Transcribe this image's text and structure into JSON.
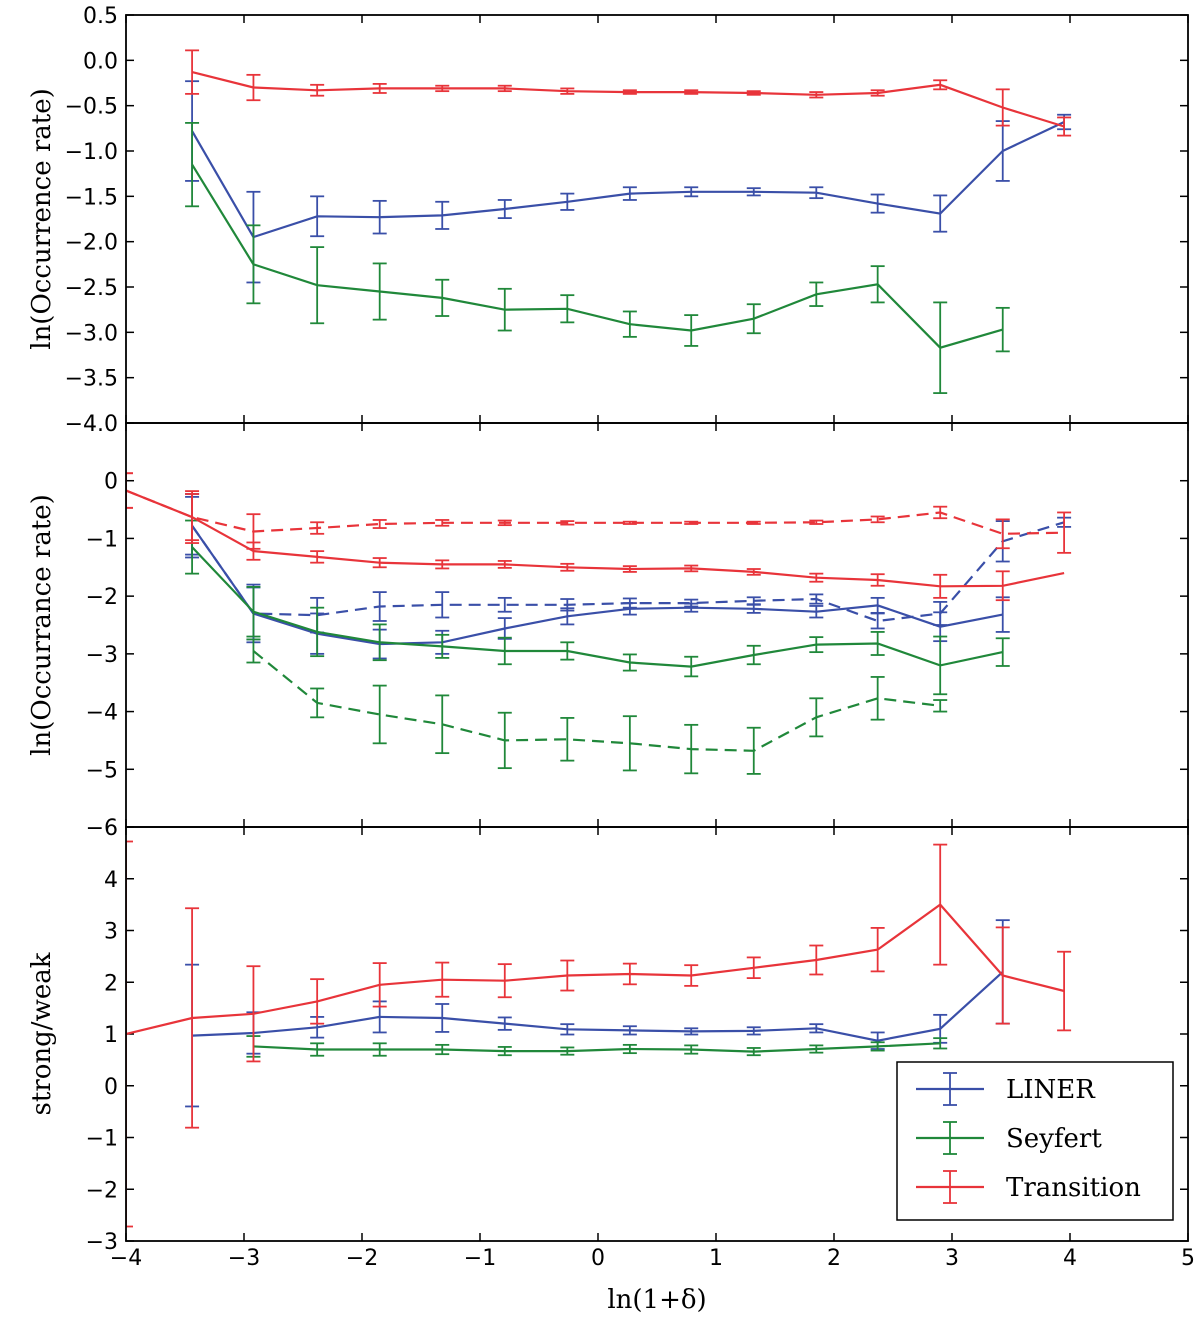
{
  "chart_data": [
    {
      "type": "line",
      "panel": "top",
      "ylabel": "ln(Occurrence rate)",
      "xlim": [
        -4,
        5
      ],
      "ylim": [
        -4.0,
        0.5
      ],
      "yticks": [
        0.5,
        0.0,
        -0.5,
        -1.0,
        -1.5,
        -2.0,
        -2.5,
        -3.0,
        -3.5,
        -4.0
      ],
      "ytick_labels": [
        "0.5",
        "0.0",
        "−0.5",
        "−1.0",
        "−1.5",
        "−2.0",
        "−2.5",
        "−3.0",
        "−3.5",
        "−4.0"
      ],
      "series": [
        {
          "name": "LINER",
          "color": "#3a4fa8",
          "style": "solid",
          "x": [
            -3.44,
            -2.92,
            -2.38,
            -1.85,
            -1.32,
            -0.79,
            -0.26,
            0.27,
            0.79,
            1.32,
            1.85,
            2.37,
            2.9,
            3.43,
            3.95
          ],
          "y": [
            -0.78,
            -1.95,
            -1.72,
            -1.73,
            -1.71,
            -1.64,
            -1.56,
            -1.47,
            -1.45,
            -1.45,
            -1.46,
            -1.58,
            -1.69,
            -1.0,
            -0.68
          ],
          "err": [
            0.55,
            0.5,
            0.22,
            0.18,
            0.15,
            0.1,
            0.09,
            0.07,
            0.05,
            0.04,
            0.06,
            0.1,
            0.2,
            0.33,
            0.08
          ]
        },
        {
          "name": "Seyfert",
          "color": "#20883a",
          "style": "solid",
          "x": [
            -3.44,
            -2.92,
            -2.38,
            -1.85,
            -1.32,
            -0.79,
            -0.26,
            0.27,
            0.79,
            1.32,
            1.85,
            2.37,
            2.9,
            3.43
          ],
          "y": [
            -1.15,
            -2.25,
            -2.48,
            -2.55,
            -2.62,
            -2.75,
            -2.74,
            -2.91,
            -2.98,
            -2.85,
            -2.58,
            -2.47,
            -3.17,
            -2.97
          ],
          "err": [
            0.46,
            0.43,
            0.42,
            0.31,
            0.2,
            0.23,
            0.15,
            0.14,
            0.17,
            0.16,
            0.13,
            0.2,
            0.5,
            0.24
          ]
        },
        {
          "name": "Transition",
          "color": "#e8343a",
          "style": "solid",
          "x": [
            -3.44,
            -2.92,
            -2.38,
            -1.85,
            -1.32,
            -0.79,
            -0.26,
            0.27,
            0.79,
            1.32,
            1.85,
            2.37,
            2.9,
            3.43,
            3.95
          ],
          "y": [
            -0.13,
            -0.3,
            -0.33,
            -0.31,
            -0.31,
            -0.31,
            -0.34,
            -0.35,
            -0.35,
            -0.36,
            -0.38,
            -0.36,
            -0.27,
            -0.52,
            -0.73
          ],
          "err": [
            0.24,
            0.14,
            0.06,
            0.05,
            0.03,
            0.03,
            0.03,
            0.02,
            0.02,
            0.02,
            0.03,
            0.03,
            0.05,
            0.2,
            0.1
          ]
        }
      ]
    },
    {
      "type": "line",
      "panel": "middle",
      "ylabel": "ln(Occurrance rate)",
      "xlim": [
        -4,
        5
      ],
      "ylim": [
        -6,
        1
      ],
      "yticks": [
        0,
        -1,
        -2,
        -3,
        -4,
        -5,
        -6
      ],
      "ytick_labels": [
        "0",
        "−1",
        "−2",
        "−3",
        "−4",
        "−5",
        "−6"
      ],
      "series": [
        {
          "name": "LINER",
          "color": "#3a4fa8",
          "style": "solid",
          "x": [
            -3.44,
            -2.92,
            -2.38,
            -1.85,
            -1.32,
            -0.79,
            -0.26,
            0.27,
            0.79,
            1.32,
            1.85,
            2.37,
            2.9,
            3.43
          ],
          "y": [
            -0.78,
            -2.3,
            -2.65,
            -2.83,
            -2.8,
            -2.56,
            -2.35,
            -2.22,
            -2.2,
            -2.22,
            -2.27,
            -2.16,
            -2.53,
            -2.32
          ],
          "err": [
            0.5,
            0.45,
            0.35,
            0.25,
            0.2,
            0.18,
            0.14,
            0.1,
            0.07,
            0.07,
            0.1,
            0.13,
            0.25,
            0.3
          ]
        },
        {
          "name": "LINER",
          "color": "#3a4fa8",
          "style": "dashed",
          "x": [
            -3.44,
            -2.92,
            -2.38,
            -1.85,
            -1.32,
            -0.79,
            -0.26,
            0.27,
            0.79,
            1.32,
            1.85,
            2.37,
            2.9,
            3.43,
            3.95
          ],
          "y": [
            -0.78,
            -2.3,
            -2.33,
            -2.18,
            -2.15,
            -2.15,
            -2.15,
            -2.12,
            -2.12,
            -2.08,
            -2.05,
            -2.43,
            -2.3,
            -1.05,
            -0.72
          ],
          "err": [
            0.55,
            0.5,
            0.3,
            0.25,
            0.22,
            0.12,
            0.1,
            0.08,
            0.06,
            0.06,
            0.08,
            0.13,
            0.2,
            0.35,
            0.08
          ]
        },
        {
          "name": "Seyfert",
          "color": "#20883a",
          "style": "solid",
          "x": [
            -3.44,
            -2.92,
            -2.38,
            -1.85,
            -1.32,
            -0.79,
            -0.26,
            0.27,
            0.79,
            1.32,
            1.85,
            2.37,
            2.9,
            3.43
          ],
          "y": [
            -1.15,
            -2.27,
            -2.62,
            -2.8,
            -2.87,
            -2.95,
            -2.95,
            -3.15,
            -3.22,
            -3.02,
            -2.84,
            -2.82,
            -3.2,
            -2.97
          ],
          "err": [
            0.46,
            0.43,
            0.42,
            0.31,
            0.2,
            0.23,
            0.15,
            0.14,
            0.17,
            0.16,
            0.13,
            0.2,
            0.5,
            0.24
          ]
        },
        {
          "name": "Seyfert",
          "color": "#20883a",
          "style": "dashed",
          "x": [
            -2.92,
            -2.38,
            -1.85,
            -1.32,
            -0.79,
            -0.26,
            0.27,
            0.79,
            1.32,
            1.85,
            2.37,
            2.9
          ],
          "y": [
            -2.95,
            -3.85,
            -4.05,
            -4.22,
            -4.5,
            -4.48,
            -4.55,
            -4.65,
            -4.68,
            -4.1,
            -3.77,
            -3.9
          ],
          "err": [
            0.2,
            0.25,
            0.5,
            0.5,
            0.48,
            0.37,
            0.47,
            0.42,
            0.4,
            0.33,
            0.37,
            0.1
          ]
        },
        {
          "name": "Transition",
          "color": "#e8343a",
          "style": "solid",
          "x": [
            -4.0,
            -3.44,
            -2.92,
            -2.38,
            -1.85,
            -1.32,
            -0.79,
            -0.26,
            0.27,
            0.79,
            1.32,
            1.85,
            2.37,
            2.9,
            3.43,
            3.95
          ],
          "y": [
            -0.17,
            -0.63,
            -1.22,
            -1.32,
            -1.42,
            -1.45,
            -1.45,
            -1.5,
            -1.53,
            -1.52,
            -1.58,
            -1.68,
            -1.72,
            -1.83,
            -1.82,
            -1.6
          ],
          "err": [
            0.3,
            0.4,
            0.15,
            0.1,
            0.08,
            0.07,
            0.06,
            0.06,
            0.05,
            0.05,
            0.05,
            0.07,
            0.1,
            0.2,
            0.25,
            0.0
          ]
        },
        {
          "name": "Transition",
          "color": "#e8343a",
          "style": "dashed",
          "x": [
            -4.0,
            -3.44,
            -2.92,
            -2.38,
            -1.85,
            -1.32,
            -0.79,
            -0.26,
            0.27,
            0.79,
            1.32,
            1.85,
            2.37,
            2.9,
            3.43,
            3.95
          ],
          "y": [
            -0.17,
            -0.63,
            -0.88,
            -0.82,
            -0.75,
            -0.73,
            -0.73,
            -0.73,
            -0.73,
            -0.73,
            -0.73,
            -0.72,
            -0.67,
            -0.55,
            -0.92,
            -0.9
          ],
          "err": [
            0.3,
            0.45,
            0.3,
            0.1,
            0.07,
            0.05,
            0.04,
            0.03,
            0.02,
            0.02,
            0.02,
            0.03,
            0.05,
            0.1,
            0.25,
            0.35
          ]
        }
      ]
    },
    {
      "type": "line",
      "panel": "bottom",
      "ylabel": "strong/weak",
      "xlabel": "ln(1+δ)",
      "xlim": [
        -4,
        5
      ],
      "ylim": [
        -3,
        5
      ],
      "yticks": [
        4,
        3,
        2,
        1,
        0,
        -1,
        -2,
        -3
      ],
      "ytick_labels": [
        "4",
        "3",
        "2",
        "1",
        "0",
        "−1",
        "−2",
        "−3"
      ],
      "xticks": [
        -4,
        -3,
        -2,
        -1,
        0,
        1,
        2,
        3,
        4,
        5
      ],
      "xtick_labels": [
        "−4",
        "−3",
        "−2",
        "−1",
        "0",
        "1",
        "2",
        "3",
        "4",
        "5"
      ],
      "legend": {
        "position": "lower-right",
        "entries": [
          "LINER",
          "Seyfert",
          "Transition"
        ]
      },
      "series": [
        {
          "name": "LINER",
          "color": "#3a4fa8",
          "style": "solid",
          "x": [
            -3.44,
            -2.92,
            -2.38,
            -1.85,
            -1.32,
            -0.79,
            -0.26,
            0.27,
            0.79,
            1.32,
            1.85,
            2.37,
            2.9,
            3.43
          ],
          "y": [
            0.97,
            1.02,
            1.13,
            1.33,
            1.31,
            1.2,
            1.09,
            1.07,
            1.05,
            1.06,
            1.11,
            0.87,
            1.1,
            2.2
          ],
          "err": [
            1.37,
            0.4,
            0.2,
            0.3,
            0.27,
            0.12,
            0.1,
            0.08,
            0.06,
            0.07,
            0.08,
            0.16,
            0.27,
            1.0
          ]
        },
        {
          "name": "Seyfert",
          "color": "#20883a",
          "style": "solid",
          "x": [
            -2.92,
            -2.38,
            -1.85,
            -1.32,
            -0.79,
            -0.26,
            0.27,
            0.79,
            1.32,
            1.85,
            2.37,
            2.9
          ],
          "y": [
            0.76,
            0.7,
            0.7,
            0.7,
            0.67,
            0.67,
            0.71,
            0.7,
            0.66,
            0.71,
            0.76,
            0.82
          ],
          "err": [
            0.2,
            0.12,
            0.12,
            0.09,
            0.08,
            0.07,
            0.08,
            0.08,
            0.07,
            0.07,
            0.08,
            0.1
          ]
        },
        {
          "name": "Transition",
          "color": "#e8343a",
          "style": "solid",
          "x": [
            -4.0,
            -3.44,
            -2.92,
            -2.38,
            -1.85,
            -1.32,
            -0.79,
            -0.26,
            0.27,
            0.79,
            1.32,
            1.85,
            2.37,
            2.9,
            3.43,
            3.95
          ],
          "y": [
            1.0,
            1.31,
            1.39,
            1.63,
            1.95,
            2.05,
            2.03,
            2.13,
            2.16,
            2.13,
            2.28,
            2.43,
            2.63,
            3.5,
            2.13,
            1.83
          ],
          "err": [
            3.72,
            2.12,
            0.92,
            0.43,
            0.42,
            0.33,
            0.32,
            0.29,
            0.2,
            0.2,
            0.2,
            0.28,
            0.42,
            1.16,
            0.93,
            0.76
          ]
        }
      ]
    }
  ]
}
